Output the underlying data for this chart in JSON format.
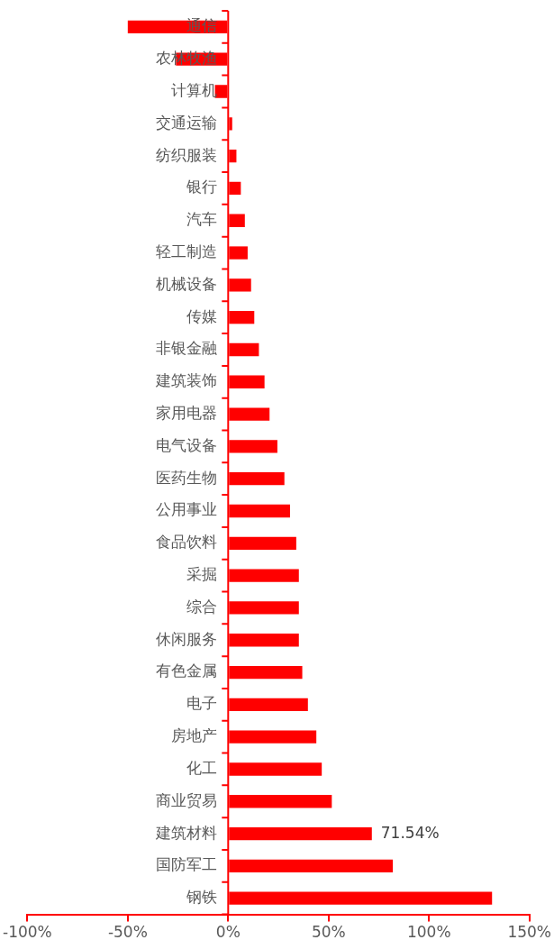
{
  "chart_data": {
    "type": "bar",
    "orientation": "horizontal",
    "color": "#ff0000",
    "categories": [
      "通信",
      "农林牧渔",
      "计算机",
      "交通运输",
      "纺织服装",
      "银行",
      "汽车",
      "轻工制造",
      "机械设备",
      "传媒",
      "非银金融",
      "建筑装饰",
      "家用电器",
      "电气设备",
      "医药生物",
      "公用事业",
      "食品饮料",
      "采掘",
      "综合",
      "休闲服务",
      "有色金属",
      "电子",
      "房地产",
      "化工",
      "商业贸易",
      "建筑材料",
      "国防军工",
      "钢铁"
    ],
    "values": [
      -50,
      -26,
      -6.6,
      2,
      4.1,
      6.3,
      8.3,
      9.7,
      11.4,
      13,
      15.3,
      18.1,
      20.6,
      24.5,
      28,
      30.8,
      33.9,
      35.2,
      35.2,
      35.2,
      36.9,
      39.7,
      43.9,
      46.6,
      51.6,
      71.54,
      82,
      131.4
    ],
    "value_labels": [
      null,
      null,
      null,
      null,
      null,
      null,
      null,
      null,
      null,
      null,
      null,
      null,
      null,
      null,
      null,
      null,
      null,
      null,
      null,
      null,
      null,
      null,
      null,
      null,
      null,
      "71.54%",
      null,
      null
    ],
    "xlim": [
      -100,
      150
    ],
    "xticks": [
      {
        "value": -100,
        "label": "-100%"
      },
      {
        "value": -50,
        "label": "-50%"
      },
      {
        "value": 0,
        "label": "0%"
      },
      {
        "value": 50,
        "label": "50%"
      },
      {
        "value": 100,
        "label": "100%"
      },
      {
        "value": 150,
        "label": "150%"
      }
    ]
  }
}
